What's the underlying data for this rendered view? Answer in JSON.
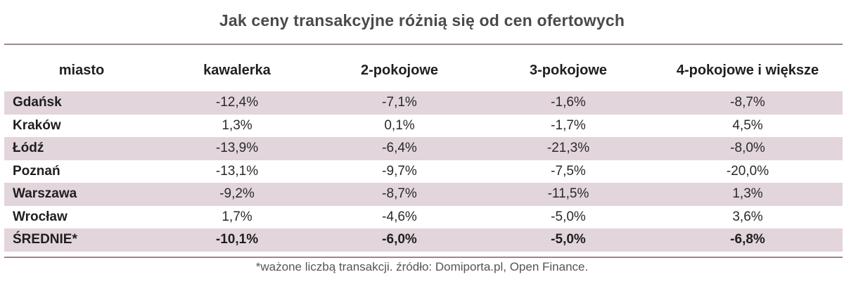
{
  "title": "Jak ceny transakcyjne różnią się od cen ofertowych",
  "chart_data": {
    "type": "table",
    "title": "Jak ceny transakcyjne różnią się od cen ofertowych",
    "columns": [
      "miasto",
      "kawalerka",
      "2-pokojowe",
      "3-pokojowe",
      "4-pokojowe i większe"
    ],
    "rows": [
      {
        "city": "Gdańsk",
        "values": [
          "-12,4%",
          "-7,1%",
          "-1,6%",
          "-8,7%"
        ]
      },
      {
        "city": "Kraków",
        "values": [
          "1,3%",
          "0,1%",
          "-1,7%",
          "4,5%"
        ]
      },
      {
        "city": "Łódź",
        "values": [
          "-13,9%",
          "-6,4%",
          "-21,3%",
          "-8,0%"
        ]
      },
      {
        "city": "Poznań",
        "values": [
          "-13,1%",
          "-9,7%",
          "-7,5%",
          "-20,0%"
        ]
      },
      {
        "city": "Warszawa",
        "values": [
          "-9,2%",
          "-8,7%",
          "-11,5%",
          "1,3%"
        ]
      },
      {
        "city": "Wrocław",
        "values": [
          "1,7%",
          "-4,6%",
          "-5,0%",
          "3,6%"
        ]
      },
      {
        "city": "ŚREDNIE*",
        "values": [
          "-10,1%",
          "-6,0%",
          "-5,0%",
          "-6,8%"
        ]
      }
    ],
    "footnote": "*ważone liczbą transakcji. źródło: Domiporta.pl, Open Finance."
  },
  "colors": {
    "row_shade": "#e2d5dc",
    "rule": "#9a8794",
    "title_text": "#4a4a4a"
  }
}
